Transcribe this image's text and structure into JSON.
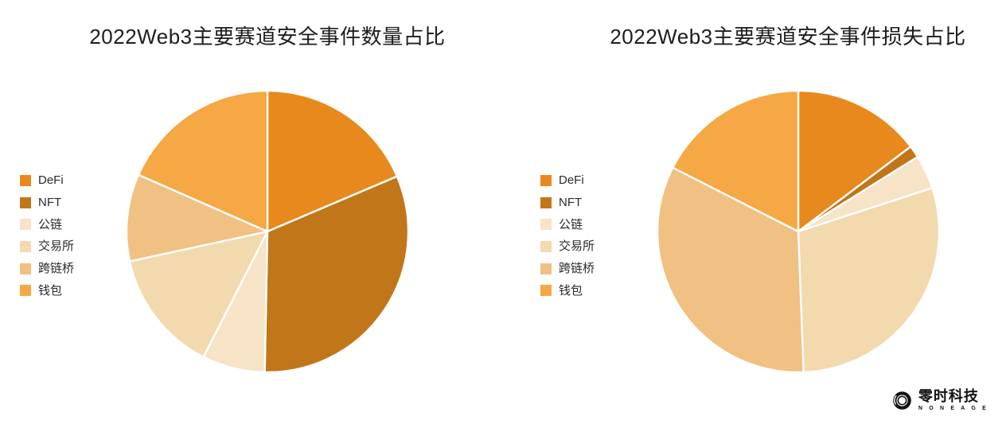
{
  "page": {
    "background": "#ffffff"
  },
  "chart_data": [
    {
      "type": "pie",
      "title": "2022Web3主要赛道安全事件数量占比",
      "categories": [
        "DeFi",
        "NFT",
        "公链",
        "交易所",
        "跨链桥",
        "钱包"
      ],
      "category_keys": [
        "defi",
        "nft",
        "public-chain",
        "exchange",
        "cross-chain-bridge",
        "wallet"
      ],
      "values": [
        18.6,
        31.7,
        7.2,
        14.1,
        10.0,
        18.4
      ],
      "unit": "percent",
      "colors": [
        "#E8891D",
        "#C1761A",
        "#F7E3C6",
        "#F3D9AE",
        "#F1C083",
        "#F5A843"
      ],
      "slice_border_color": "#ffffff",
      "start_angle_deg": 0,
      "direction": "clockwise",
      "legend_position": "left",
      "data_labels": "none"
    },
    {
      "type": "pie",
      "title": "2022Web3主要赛道安全事件损失占比",
      "categories": [
        "DeFi",
        "NFT",
        "公链",
        "交易所",
        "跨链桥",
        "钱包"
      ],
      "category_keys": [
        "defi",
        "nft",
        "public-chain",
        "exchange",
        "cross-chain-bridge",
        "wallet"
      ],
      "values": [
        14.7,
        1.4,
        3.9,
        29.4,
        33.1,
        17.5
      ],
      "unit": "percent",
      "colors": [
        "#E8891D",
        "#C1761A",
        "#F7E3C6",
        "#F3D9AE",
        "#F1C083",
        "#F5A843"
      ],
      "slice_border_color": "#ffffff",
      "start_angle_deg": 0,
      "direction": "clockwise",
      "legend_position": "left",
      "data_labels": "none"
    }
  ],
  "footer": {
    "logo_text": "零时科技",
    "logo_subtext": "N O N E A G E",
    "logo_color": "#121212"
  }
}
